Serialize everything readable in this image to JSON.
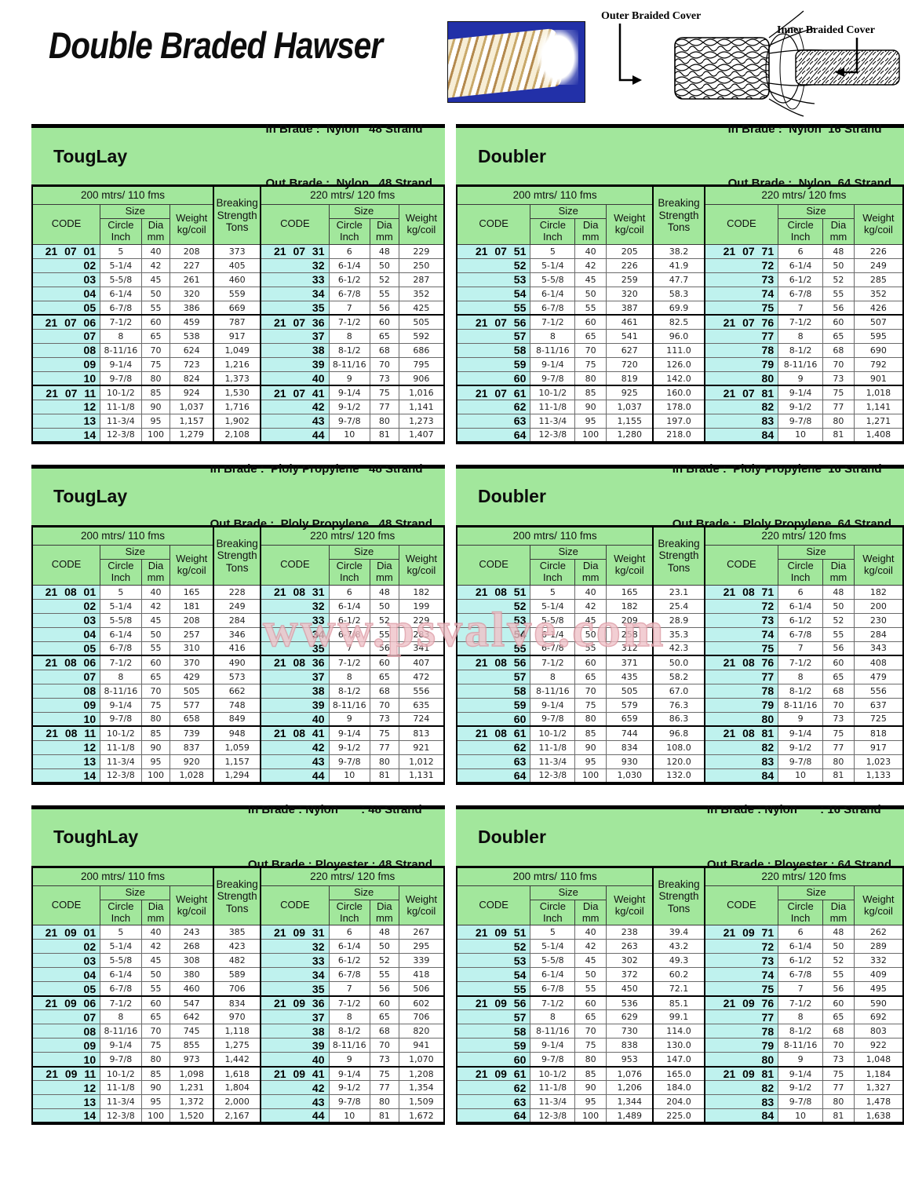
{
  "page": {
    "title": "Double Braded Hawser",
    "watermark": "www.psvalve.com"
  },
  "header": {
    "diagram": {
      "outer_label": "Outer Braided Cover",
      "inner_label": "Inner Braided Cover"
    }
  },
  "labels": {
    "col_200": "200 mtrs/ 110 fms",
    "col_220": "220 mtrs/ 120 fms",
    "code": "CODE",
    "size": "Size",
    "circle_inch": "Circle Inch",
    "dia_mm": "Dia mm",
    "weight": "Weight kg/coil",
    "breaking": "Breaking Strength Tons"
  },
  "tables": [
    {
      "title": "TougLay",
      "in_brade": "In Brade :  Nylon   48 Strand",
      "out_brade": "Out Brade :  Nylon   48 Strand",
      "rows": [
        [
          "21 07 01",
          "5",
          "40",
          "208",
          "373",
          "21 07 31",
          "6",
          "48",
          "229"
        ],
        [
          "02",
          "5-1/4",
          "42",
          "227",
          "405",
          "32",
          "6-1/4",
          "50",
          "250"
        ],
        [
          "03",
          "5-5/8",
          "45",
          "261",
          "460",
          "33",
          "6-1/2",
          "52",
          "287"
        ],
        [
          "04",
          "6-1/4",
          "50",
          "320",
          "559",
          "34",
          "6-7/8",
          "55",
          "352"
        ],
        [
          "05",
          "6-7/8",
          "55",
          "386",
          "669",
          "35",
          "7",
          "56",
          "425"
        ],
        [
          "21 07 06",
          "7-1/2",
          "60",
          "459",
          "787",
          "21 07 36",
          "7-1/2",
          "60",
          "505"
        ],
        [
          "07",
          "8",
          "65",
          "538",
          "917",
          "37",
          "8",
          "65",
          "592"
        ],
        [
          "08",
          "8-11/16",
          "70",
          "624",
          "1,049",
          "38",
          "8-1/2",
          "68",
          "686"
        ],
        [
          "09",
          "9-1/4",
          "75",
          "723",
          "1,216",
          "39",
          "8-11/16",
          "70",
          "795"
        ],
        [
          "10",
          "9-7/8",
          "80",
          "824",
          "1,373",
          "40",
          "9",
          "73",
          "906"
        ],
        [
          "21 07 11",
          "10-1/2",
          "85",
          "924",
          "1,530",
          "21 07 41",
          "9-1/4",
          "75",
          "1,016"
        ],
        [
          "12",
          "11-1/8",
          "90",
          "1,037",
          "1,716",
          "42",
          "9-1/2",
          "77",
          "1,141"
        ],
        [
          "13",
          "11-3/4",
          "95",
          "1,157",
          "1,902",
          "43",
          "9-7/8",
          "80",
          "1,273"
        ],
        [
          "14",
          "12-3/8",
          "100",
          "1,279",
          "2,108",
          "44",
          "10",
          "81",
          "1,407"
        ]
      ]
    },
    {
      "title": "Doubler",
      "in_brade": "In Brade :  Nylon  16 Strand",
      "out_brade": "Out Brade :  Nylon  64 Strand",
      "rows": [
        [
          "21 07 51",
          "5",
          "40",
          "205",
          "38.2",
          "21 07 71",
          "6",
          "48",
          "226"
        ],
        [
          "52",
          "5-1/4",
          "42",
          "226",
          "41.9",
          "72",
          "6-1/4",
          "50",
          "249"
        ],
        [
          "53",
          "5-5/8",
          "45",
          "259",
          "47.7",
          "73",
          "6-1/2",
          "52",
          "285"
        ],
        [
          "54",
          "6-1/4",
          "50",
          "320",
          "58.3",
          "74",
          "6-7/8",
          "55",
          "352"
        ],
        [
          "55",
          "6-7/8",
          "55",
          "387",
          "69.9",
          "75",
          "7",
          "56",
          "426"
        ],
        [
          "21 07 56",
          "7-1/2",
          "60",
          "461",
          "82.5",
          "21 07 76",
          "7-1/2",
          "60",
          "507"
        ],
        [
          "57",
          "8",
          "65",
          "541",
          "96.0",
          "77",
          "8",
          "65",
          "595"
        ],
        [
          "58",
          "8-11/16",
          "70",
          "627",
          "111.0",
          "78",
          "8-1/2",
          "68",
          "690"
        ],
        [
          "59",
          "9-1/4",
          "75",
          "720",
          "126.0",
          "79",
          "8-11/16",
          "70",
          "792"
        ],
        [
          "60",
          "9-7/8",
          "80",
          "819",
          "142.0",
          "80",
          "9",
          "73",
          "901"
        ],
        [
          "21 07 61",
          "10-1/2",
          "85",
          "925",
          "160.0",
          "21 07 81",
          "9-1/4",
          "75",
          "1,018"
        ],
        [
          "62",
          "11-1/8",
          "90",
          "1,037",
          "178.0",
          "82",
          "9-1/2",
          "77",
          "1,141"
        ],
        [
          "63",
          "11-3/4",
          "95",
          "1,155",
          "197.0",
          "83",
          "9-7/8",
          "80",
          "1,271"
        ],
        [
          "64",
          "12-3/8",
          "100",
          "1,280",
          "218.0",
          "84",
          "10",
          "81",
          "1,408"
        ]
      ]
    },
    {
      "title": "TougLay",
      "in_brade": "In Brade :  Ploly Propylene   48 Strand",
      "out_brade": "Out Brade :  Ploly Propylene   48 Strand",
      "rows": [
        [
          "21 08 01",
          "5",
          "40",
          "165",
          "228",
          "21 08 31",
          "6",
          "48",
          "182"
        ],
        [
          "02",
          "5-1/4",
          "42",
          "181",
          "249",
          "32",
          "6-1/4",
          "50",
          "199"
        ],
        [
          "03",
          "5-5/8",
          "45",
          "208",
          "284",
          "33",
          "6-1/2",
          "52",
          "229"
        ],
        [
          "04",
          "6-1/4",
          "50",
          "257",
          "346",
          "34",
          "6-7/8",
          "55",
          "283"
        ],
        [
          "05",
          "6-7/8",
          "55",
          "310",
          "416",
          "35",
          "7",
          "56",
          "341"
        ],
        [
          "21 08 06",
          "7-1/2",
          "60",
          "370",
          "490",
          "21 08 36",
          "7-1/2",
          "60",
          "407"
        ],
        [
          "07",
          "8",
          "65",
          "429",
          "573",
          "37",
          "8",
          "65",
          "472"
        ],
        [
          "08",
          "8-11/16",
          "70",
          "505",
          "662",
          "38",
          "8-1/2",
          "68",
          "556"
        ],
        [
          "09",
          "9-1/4",
          "75",
          "577",
          "748",
          "39",
          "8-11/16",
          "70",
          "635"
        ],
        [
          "10",
          "9-7/8",
          "80",
          "658",
          "849",
          "40",
          "9",
          "73",
          "724"
        ],
        [
          "21 08 11",
          "10-1/2",
          "85",
          "739",
          "948",
          "21 08 41",
          "9-1/4",
          "75",
          "813"
        ],
        [
          "12",
          "11-1/8",
          "90",
          "837",
          "1,059",
          "42",
          "9-1/2",
          "77",
          "921"
        ],
        [
          "13",
          "11-3/4",
          "95",
          "920",
          "1,157",
          "43",
          "9-7/8",
          "80",
          "1,012"
        ],
        [
          "14",
          "12-3/8",
          "100",
          "1,028",
          "1,294",
          "44",
          "10",
          "81",
          "1,131"
        ]
      ]
    },
    {
      "title": "Doubler",
      "in_brade": "In Brade :  Ploly Propylene  16 Strand",
      "out_brade": "Out Brade :  Ploly Propylene  64 Strand",
      "rows": [
        [
          "21 08 51",
          "5",
          "40",
          "165",
          "23.1",
          "21 08 71",
          "6",
          "48",
          "182"
        ],
        [
          "52",
          "5-1/4",
          "42",
          "182",
          "25.4",
          "72",
          "6-1/4",
          "50",
          "200"
        ],
        [
          "53",
          "5-5/8",
          "45",
          "209",
          "28.9",
          "73",
          "6-1/2",
          "52",
          "230"
        ],
        [
          "54",
          "6-1/4",
          "50",
          "258",
          "35.3",
          "74",
          "6-7/8",
          "55",
          "284"
        ],
        [
          "55",
          "6-7/8",
          "55",
          "312",
          "42.3",
          "75",
          "7",
          "56",
          "343"
        ],
        [
          "21 08 56",
          "7-1/2",
          "60",
          "371",
          "50.0",
          "21 08 76",
          "7-1/2",
          "60",
          "408"
        ],
        [
          "57",
          "8",
          "65",
          "435",
          "58.2",
          "77",
          "8",
          "65",
          "479"
        ],
        [
          "58",
          "8-11/16",
          "70",
          "505",
          "67.0",
          "78",
          "8-1/2",
          "68",
          "556"
        ],
        [
          "59",
          "9-1/4",
          "75",
          "579",
          "76.3",
          "79",
          "8-11/16",
          "70",
          "637"
        ],
        [
          "60",
          "9-7/8",
          "80",
          "659",
          "86.3",
          "80",
          "9",
          "73",
          "725"
        ],
        [
          "21 08 61",
          "10-1/2",
          "85",
          "744",
          "96.8",
          "21 08 81",
          "9-1/4",
          "75",
          "818"
        ],
        [
          "62",
          "11-1/8",
          "90",
          "834",
          "108.0",
          "82",
          "9-1/2",
          "77",
          "917"
        ],
        [
          "63",
          "11-3/4",
          "95",
          "930",
          "120.0",
          "83",
          "9-7/8",
          "80",
          "1,023"
        ],
        [
          "64",
          "12-3/8",
          "100",
          "1,030",
          "132.0",
          "84",
          "10",
          "81",
          "1,133"
        ]
      ]
    },
    {
      "title": "ToughLay",
      "in_brade": "In Brade : Nylon       : 48 Strand",
      "out_brade": "Out Brade : Ployester : 48 Strand",
      "rows": [
        [
          "21 09 01",
          "5",
          "40",
          "243",
          "385",
          "21 09 31",
          "6",
          "48",
          "267"
        ],
        [
          "02",
          "5-1/4",
          "42",
          "268",
          "423",
          "32",
          "6-1/4",
          "50",
          "295"
        ],
        [
          "03",
          "5-5/8",
          "45",
          "308",
          "482",
          "33",
          "6-1/2",
          "52",
          "339"
        ],
        [
          "04",
          "6-1/4",
          "50",
          "380",
          "589",
          "34",
          "6-7/8",
          "55",
          "418"
        ],
        [
          "05",
          "6-7/8",
          "55",
          "460",
          "706",
          "35",
          "7",
          "56",
          "506"
        ],
        [
          "21 09 06",
          "7-1/2",
          "60",
          "547",
          "834",
          "21 09 36",
          "7-1/2",
          "60",
          "602"
        ],
        [
          "07",
          "8",
          "65",
          "642",
          "970",
          "37",
          "8",
          "65",
          "706"
        ],
        [
          "08",
          "8-11/16",
          "70",
          "745",
          "1,118",
          "38",
          "8-1/2",
          "68",
          "820"
        ],
        [
          "09",
          "9-1/4",
          "75",
          "855",
          "1,275",
          "39",
          "8-11/16",
          "70",
          "941"
        ],
        [
          "10",
          "9-7/8",
          "80",
          "973",
          "1,442",
          "40",
          "9",
          "73",
          "1,070"
        ],
        [
          "21 09 11",
          "10-1/2",
          "85",
          "1,098",
          "1,618",
          "21 09 41",
          "9-1/4",
          "75",
          "1,208"
        ],
        [
          "12",
          "11-1/8",
          "90",
          "1,231",
          "1,804",
          "42",
          "9-1/2",
          "77",
          "1,354"
        ],
        [
          "13",
          "11-3/4",
          "95",
          "1,372",
          "2,000",
          "43",
          "9-7/8",
          "80",
          "1,509"
        ],
        [
          "14",
          "12-3/8",
          "100",
          "1,520",
          "2,167",
          "44",
          "10",
          "81",
          "1,672"
        ]
      ]
    },
    {
      "title": "Doubler",
      "in_brade": "In Brade : Nylon       : 16 Strand",
      "out_brade": "Out Brade : Ployester : 64 Strand",
      "rows": [
        [
          "21 09 51",
          "5",
          "40",
          "238",
          "39.4",
          "21 09 71",
          "6",
          "48",
          "262"
        ],
        [
          "52",
          "5-1/4",
          "42",
          "263",
          "43.2",
          "72",
          "6-1/4",
          "50",
          "289"
        ],
        [
          "53",
          "5-5/8",
          "45",
          "302",
          "49.3",
          "73",
          "6-1/2",
          "52",
          "332"
        ],
        [
          "54",
          "6-1/4",
          "50",
          "372",
          "60.2",
          "74",
          "6-7/8",
          "55",
          "409"
        ],
        [
          "55",
          "6-7/8",
          "55",
          "450",
          "72.1",
          "75",
          "7",
          "56",
          "495"
        ],
        [
          "21 09 56",
          "7-1/2",
          "60",
          "536",
          "85.1",
          "21 09 76",
          "7-1/2",
          "60",
          "590"
        ],
        [
          "57",
          "8",
          "65",
          "629",
          "99.1",
          "77",
          "8",
          "65",
          "692"
        ],
        [
          "58",
          "8-11/16",
          "70",
          "730",
          "114.0",
          "78",
          "8-1/2",
          "68",
          "803"
        ],
        [
          "59",
          "9-1/4",
          "75",
          "838",
          "130.0",
          "79",
          "8-11/16",
          "70",
          "922"
        ],
        [
          "60",
          "9-7/8",
          "80",
          "953",
          "147.0",
          "80",
          "9",
          "73",
          "1,048"
        ],
        [
          "21 09 61",
          "10-1/2",
          "85",
          "1,076",
          "165.0",
          "21 09 81",
          "9-1/4",
          "75",
          "1,184"
        ],
        [
          "62",
          "11-1/8",
          "90",
          "1,206",
          "184.0",
          "82",
          "9-1/2",
          "77",
          "1,327"
        ],
        [
          "63",
          "11-3/4",
          "95",
          "1,344",
          "204.0",
          "83",
          "9-7/8",
          "80",
          "1,478"
        ],
        [
          "64",
          "12-3/8",
          "100",
          "1,489",
          "225.0",
          "84",
          "10",
          "81",
          "1,638"
        ]
      ]
    }
  ]
}
